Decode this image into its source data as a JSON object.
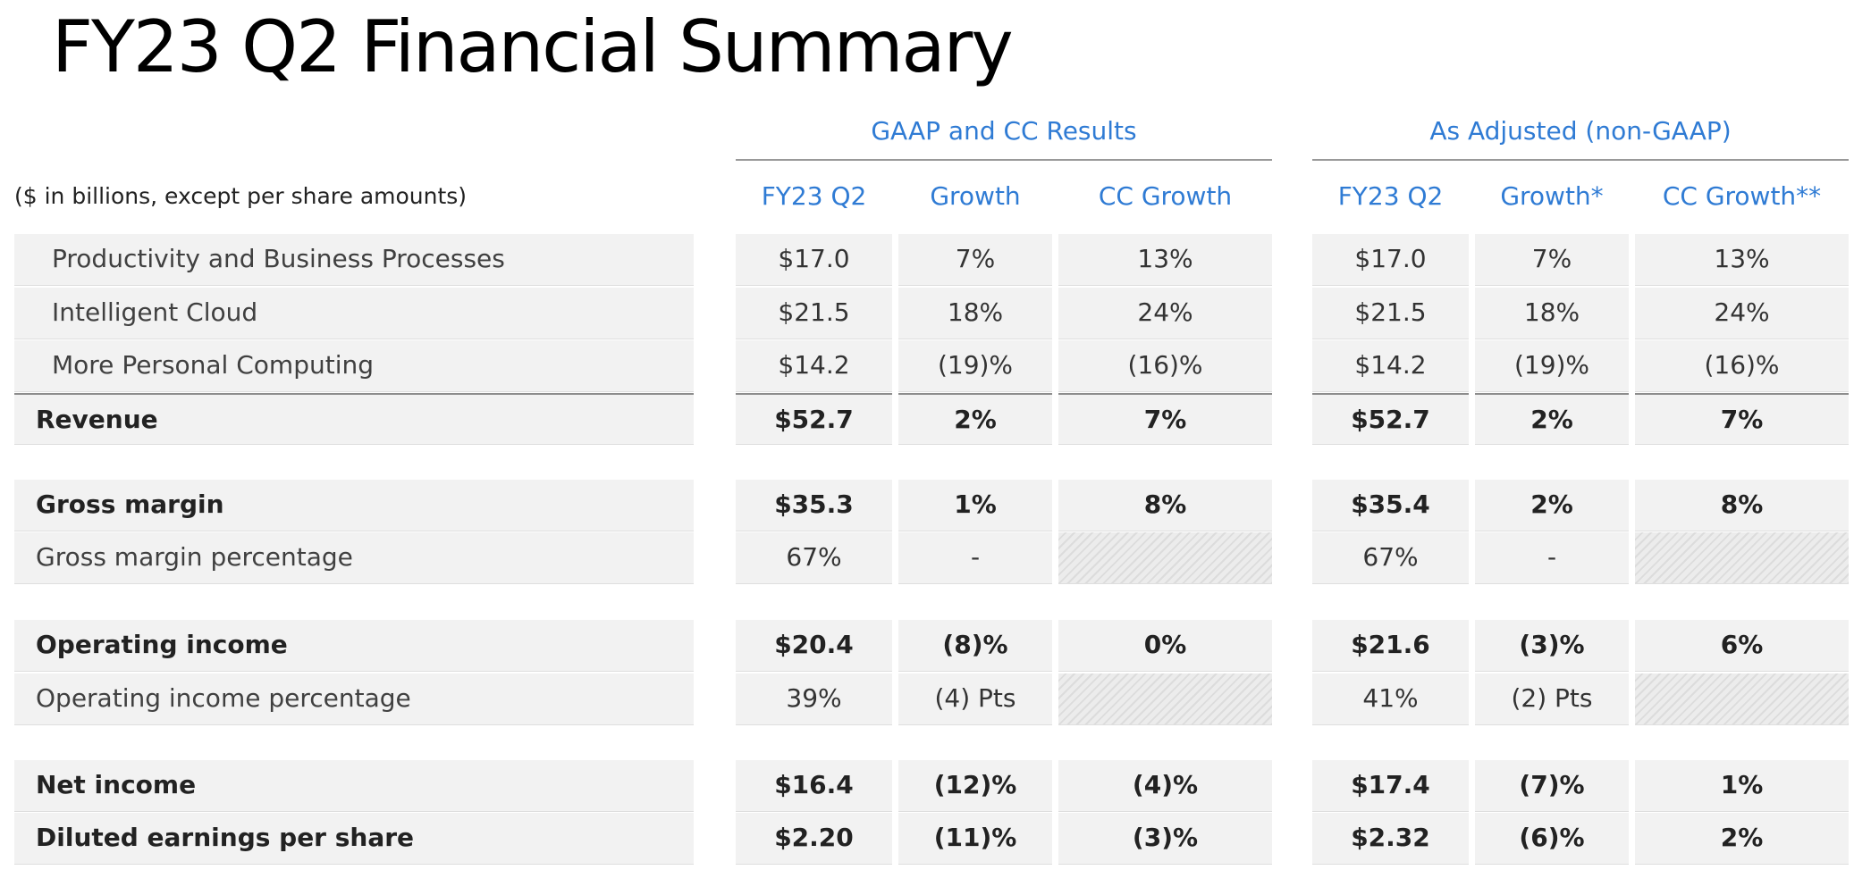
{
  "title": "FY23 Q2 Financial Summary",
  "note": "($ in billions, except per share amounts)",
  "accent_color": "#2f7bd4",
  "groups": [
    {
      "label": "GAAP and CC Results",
      "columns": [
        "FY23 Q2",
        "Growth",
        "CC Growth"
      ]
    },
    {
      "label": "As Adjusted (non-GAAP)",
      "columns": [
        "FY23 Q2",
        "Growth*",
        "CC Growth**"
      ]
    }
  ],
  "rows": [
    {
      "label": "Productivity and Business Processes",
      "values": [
        "$17.0",
        "7%",
        "13%",
        "$17.0",
        "7%",
        "13%"
      ]
    },
    {
      "label": "Intelligent Cloud",
      "values": [
        "$21.5",
        "18%",
        "24%",
        "$21.5",
        "18%",
        "24%"
      ]
    },
    {
      "label": "More Personal Computing",
      "values": [
        "$14.2",
        "(19)%",
        "(16)%",
        "$14.2",
        "(19)%",
        "(16)%"
      ]
    },
    {
      "label": "Revenue",
      "values": [
        "$52.7",
        "2%",
        "7%",
        "$52.7",
        "2%",
        "7%"
      ]
    },
    {
      "label": "Gross margin",
      "values": [
        "$35.3",
        "1%",
        "8%",
        "$35.4",
        "2%",
        "8%"
      ]
    },
    {
      "label": "Gross margin percentage",
      "values": [
        "67%",
        "-",
        "",
        "67%",
        "-",
        ""
      ]
    },
    {
      "label": "Operating income",
      "values": [
        "$20.4",
        "(8)%",
        "0%",
        "$21.6",
        "(3)%",
        "6%"
      ]
    },
    {
      "label": "Operating income percentage",
      "values": [
        "39%",
        "(4) Pts",
        "",
        "41%",
        "(2) Pts",
        ""
      ]
    },
    {
      "label": "Net income",
      "values": [
        "$16.4",
        "(12)%",
        "(4)%",
        "$17.4",
        "(7)%",
        "1%"
      ]
    },
    {
      "label": "Diluted earnings per share",
      "values": [
        "$2.20",
        "(11)%",
        "(3)%",
        "$2.32",
        "(6)%",
        "2%"
      ]
    }
  ]
}
